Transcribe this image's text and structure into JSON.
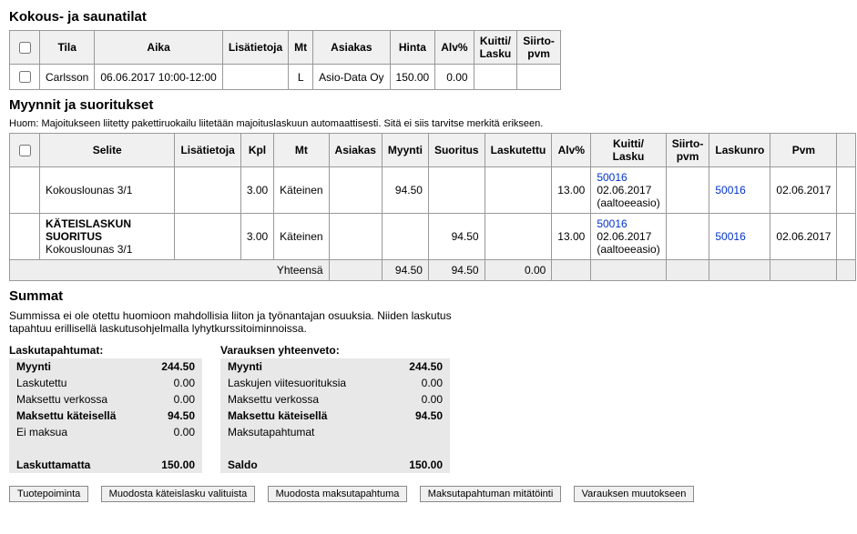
{
  "section1": {
    "title": "Kokous- ja saunatilat",
    "headers": [
      "Tila",
      "Aika",
      "Lisätietoja",
      "Mt",
      "Asiakas",
      "Hinta",
      "Alv%",
      "Kuitti/\nLasku",
      "Siirto-\npvm"
    ],
    "row": {
      "tila": "Carlsson",
      "aika": "06.06.2017 10:00-12:00",
      "lisa": "",
      "mt": "L",
      "asiakas": "Asio-Data Oy",
      "hinta": "150.00",
      "alv": "0.00",
      "kuitti": "",
      "siirto": ""
    }
  },
  "section2": {
    "title": "Myynnit ja suoritukset",
    "note": "Huom: Majoitukseen liitetty pakettiruokailu liitetään majoituslaskuun automaattisesti. Sitä ei siis tarvitse merkitä erikseen.",
    "headers": [
      "Selite",
      "Lisätietoja",
      "Kpl",
      "Mt",
      "Asiakas",
      "Myynti",
      "Suoritus",
      "Laskutettu",
      "Alv%",
      "Kuitti/\nLasku",
      "Siirto-\npvm",
      "Laskunro",
      "Pvm"
    ],
    "rows": [
      {
        "selite": "Kokouslounas 3/1",
        "selite_bold": "",
        "lisa": "",
        "kpl": "3.00",
        "mt": "Käteinen",
        "asiakas": "",
        "myynti": "94.50",
        "suoritus": "",
        "laskutettu": "",
        "alv": "13.00",
        "kuitti_nro": "50016",
        "kuitti_date": "02.06.2017",
        "kuitti_src": "(aaltoeeasio)",
        "siirto": "",
        "laskunro": "50016",
        "pvm": "02.06.2017"
      },
      {
        "selite": "Kokouslounas 3/1",
        "selite_bold": "KÄTEISLASKUN SUORITUS",
        "lisa": "",
        "kpl": "3.00",
        "mt": "Käteinen",
        "asiakas": "",
        "myynti": "",
        "suoritus": "94.50",
        "laskutettu": "",
        "alv": "13.00",
        "kuitti_nro": "50016",
        "kuitti_date": "02.06.2017",
        "kuitti_src": "(aaltoeeasio)",
        "siirto": "",
        "laskunro": "50016",
        "pvm": "02.06.2017"
      }
    ],
    "footer": {
      "label": "Yhteensä",
      "myynti": "94.50",
      "suoritus": "94.50",
      "laskutettu": "0.00"
    }
  },
  "section3": {
    "title": "Summat",
    "text": "Summissa ei ole otettu huomioon mahdollisia liiton ja työnantajan osuuksia. Niiden laskutus tapahtuu erillisellä laskutusohjelmalla lyhytkurssitoiminnoissa.",
    "left": {
      "title": "Laskutapahtumat:",
      "rows": [
        [
          "Myynti",
          "244.50"
        ],
        [
          "Laskutettu",
          "0.00"
        ],
        [
          "Maksettu verkossa",
          "0.00"
        ],
        [
          "Maksettu käteisellä",
          "94.50"
        ],
        [
          "Ei maksua",
          "0.00"
        ]
      ],
      "last": [
        "Laskuttamatta",
        "150.00"
      ]
    },
    "right": {
      "title": "Varauksen yhteenveto:",
      "rows": [
        [
          "Myynti",
          "244.50"
        ],
        [
          "Laskujen viitesuorituksia",
          "0.00"
        ],
        [
          "Maksettu verkossa",
          "0.00"
        ],
        [
          "Maksettu käteisellä",
          "94.50"
        ],
        [
          "Maksutapahtumat",
          ""
        ]
      ],
      "last": [
        "Saldo",
        "150.00"
      ]
    }
  },
  "buttons": {
    "b1": "Tuotepoiminta",
    "b2": "Muodosta käteislasku valituista",
    "b3": "Muodosta maksutapahtuma",
    "b4": "Maksutapahtuman mitätöinti",
    "b5": "Varauksen muutokseen"
  }
}
